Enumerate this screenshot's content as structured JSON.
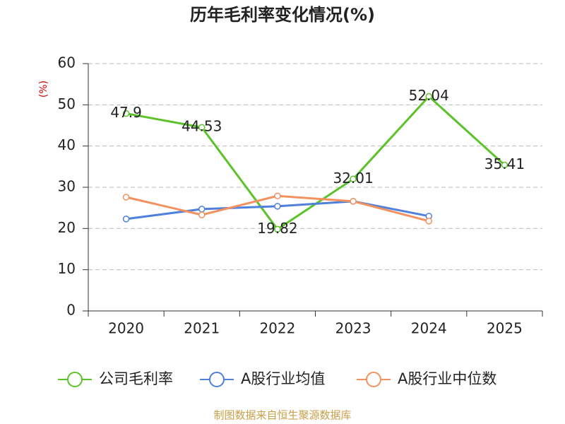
{
  "chart_data": {
    "type": "line",
    "title": "历年毛利率变化情况(%)",
    "y_label": "(%)",
    "categories": [
      "2020",
      "2021",
      "2022",
      "2023",
      "2024",
      "2025"
    ],
    "series": [
      {
        "name": "公司毛利率",
        "color": "#5cc22a",
        "values": [
          47.9,
          44.53,
          19.82,
          32.01,
          52.04,
          35.41
        ],
        "show_labels": true
      },
      {
        "name": "A股行业均值",
        "color": "#4f80dc",
        "values": [
          22.3,
          24.7,
          25.4,
          26.6,
          23.0,
          null
        ]
      },
      {
        "name": "A股行业中位数",
        "color": "#f39160",
        "values": [
          27.6,
          23.3,
          27.9,
          26.6,
          21.8,
          null
        ]
      }
    ],
    "ylim": [
      0,
      60
    ],
    "yticks": [
      0,
      10,
      20,
      30,
      40,
      50,
      60
    ],
    "grid": true,
    "legend": "bottom",
    "source": "制图数据来自恒生聚源数据库"
  }
}
